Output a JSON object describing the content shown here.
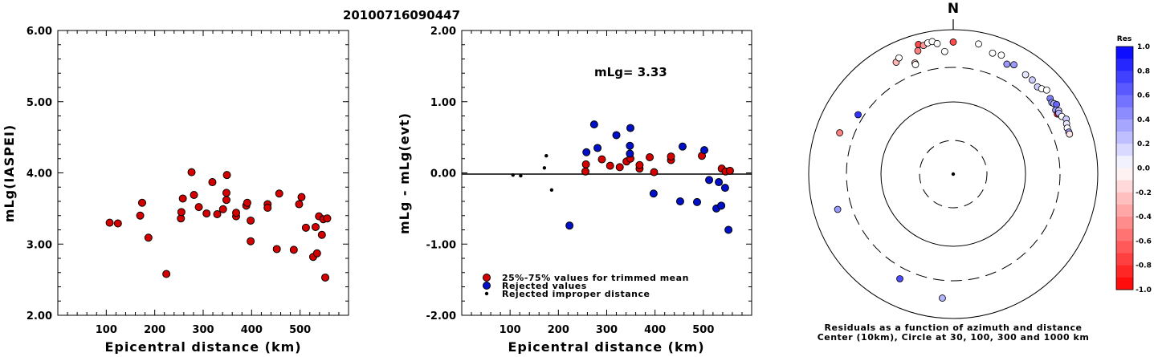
{
  "title": "20100716090447",
  "colors": {
    "red": "#d40000",
    "blue": "#0010c8",
    "black": "#000000"
  },
  "chart_data": [
    {
      "type": "scatter",
      "xlabel": "Epicentral distance (km)",
      "ylabel": "mLg(IASPEI)",
      "xlim": [
        0,
        600
      ],
      "ylim": [
        2.0,
        6.0
      ],
      "xticks": [
        "100",
        "200",
        "300",
        "400",
        "500"
      ],
      "yticks": [
        "2.00",
        "3.00",
        "4.00",
        "5.00",
        "6.00"
      ],
      "series": [
        {
          "color": "red",
          "points": [
            [
              107,
              3.3
            ],
            [
              124,
              3.29
            ],
            [
              170,
              3.4
            ],
            [
              174,
              3.58
            ],
            [
              187,
              3.09
            ],
            [
              224,
              2.58
            ],
            [
              254,
              3.36
            ],
            [
              255,
              3.45
            ],
            [
              258,
              3.64
            ],
            [
              276,
              4.01
            ],
            [
              281,
              3.69
            ],
            [
              291,
              3.52
            ],
            [
              307,
              3.43
            ],
            [
              319,
              3.87
            ],
            [
              329,
              3.42
            ],
            [
              341,
              3.49
            ],
            [
              349,
              3.97
            ],
            [
              348,
              3.62
            ],
            [
              348,
              3.72
            ],
            [
              368,
              3.39
            ],
            [
              368,
              3.44
            ],
            [
              389,
              3.54
            ],
            [
              391,
              3.58
            ],
            [
              398,
              3.04
            ],
            [
              398,
              3.33
            ],
            [
              433,
              3.56
            ],
            [
              433,
              3.51
            ],
            [
              452,
              2.93
            ],
            [
              457,
              3.71
            ],
            [
              487,
              2.92
            ],
            [
              498,
              3.56
            ],
            [
              503,
              3.66
            ],
            [
              512,
              3.23
            ],
            [
              527,
              2.82
            ],
            [
              532,
              3.24
            ],
            [
              535,
              2.87
            ],
            [
              539,
              3.39
            ],
            [
              545,
              3.13
            ],
            [
              548,
              3.35
            ],
            [
              552,
              2.53
            ],
            [
              556,
              3.36
            ]
          ]
        }
      ]
    },
    {
      "type": "scatter",
      "xlabel": "Epicentral distance (km)",
      "ylabel": "mLg - mLg(evt)",
      "xlim": [
        0,
        600
      ],
      "ylim": [
        -2.0,
        2.0
      ],
      "xticks": [
        "100",
        "200",
        "300",
        "400",
        "500"
      ],
      "yticks": [
        "-2.00",
        "-1.00",
        "0.00",
        "1.00",
        "2.00"
      ],
      "annotation": "mLg= 3.33",
      "legend": {
        "position": "bottom-left",
        "entries": [
          {
            "label": "25%-75% values for trimmed mean",
            "color": "red"
          },
          {
            "label": "Rejected values",
            "color": "blue"
          },
          {
            "label": "Rejected improper distance",
            "color": "black"
          }
        ]
      },
      "series": [
        {
          "color": "black",
          "size": "small",
          "points": [
            [
              106,
              -0.03
            ],
            [
              122,
              -0.04
            ],
            [
              171,
              0.07
            ],
            [
              175,
              0.24
            ],
            [
              186,
              -0.24
            ]
          ]
        },
        {
          "color": "red",
          "points": [
            [
              256,
              0.02
            ],
            [
              257,
              0.12
            ],
            [
              290,
              0.19
            ],
            [
              307,
              0.1
            ],
            [
              327,
              0.08
            ],
            [
              341,
              0.16
            ],
            [
              349,
              0.2
            ],
            [
              368,
              0.06
            ],
            [
              368,
              0.11
            ],
            [
              389,
              0.22
            ],
            [
              398,
              0.01
            ],
            [
              433,
              0.18
            ],
            [
              433,
              0.23
            ],
            [
              497,
              0.24
            ],
            [
              538,
              0.06
            ],
            [
              546,
              0.02
            ],
            [
              555,
              0.03
            ]
          ]
        },
        {
          "color": "blue",
          "points": [
            [
              223,
              -0.74
            ],
            [
              258,
              0.29
            ],
            [
              274,
              0.68
            ],
            [
              281,
              0.35
            ],
            [
              320,
              0.53
            ],
            [
              348,
              0.27
            ],
            [
              348,
              0.38
            ],
            [
              349,
              0.63
            ],
            [
              397,
              -0.29
            ],
            [
              452,
              -0.4
            ],
            [
              457,
              0.37
            ],
            [
              487,
              -0.41
            ],
            [
              502,
              0.32
            ],
            [
              512,
              -0.1
            ],
            [
              527,
              -0.5
            ],
            [
              532,
              -0.13
            ],
            [
              537,
              -0.46
            ],
            [
              545,
              -0.21
            ],
            [
              552,
              -0.8
            ]
          ]
        }
      ]
    },
    {
      "type": "polar",
      "north_label": "N",
      "caption": [
        "Residuals as a function of azimuth and distance",
        "Center (10km), Circle at 30, 100, 300 and 1000 km"
      ],
      "rings_km": [
        30,
        100,
        300,
        1000
      ],
      "colorbar": {
        "title": "Res",
        "min": -1.0,
        "max": 1.0,
        "labels": [
          "1.0",
          "0.8",
          "0.6",
          "0.4",
          "0.2",
          "0.0",
          "-0.2",
          "-0.4",
          "-0.6",
          "-0.8",
          "-1.0"
        ]
      },
      "points": [
        {
          "az": 356,
          "dist": 600,
          "res": 0.0
        },
        {
          "az": 185,
          "dist": 630,
          "res": 0.3
        },
        {
          "az": 207,
          "dist": 500,
          "res": 0.7
        },
        {
          "az": 253,
          "dist": 560,
          "res": 0.4
        },
        {
          "az": 290,
          "dist": 560,
          "res": -0.5
        },
        {
          "az": 302,
          "dist": 400,
          "res": 0.8
        },
        {
          "az": 333,
          "dist": 650,
          "res": -0.3
        },
        {
          "az": 335,
          "dist": 700,
          "res": 0.0
        },
        {
          "az": 341,
          "dist": 500,
          "res": -0.2
        },
        {
          "az": 341,
          "dist": 470,
          "res": 0.0
        },
        {
          "az": 344,
          "dist": 700,
          "res": -0.5
        },
        {
          "az": 345,
          "dist": 810,
          "res": -0.7
        },
        {
          "az": 347,
          "dist": 770,
          "res": -0.4
        },
        {
          "az": 349,
          "dist": 800,
          "res": 0.0
        },
        {
          "az": 351,
          "dist": 810,
          "res": 0.0
        },
        {
          "az": 353,
          "dist": 760,
          "res": 0.0
        },
        {
          "az": 0,
          "dist": 770,
          "res": -0.7
        },
        {
          "az": 11,
          "dist": 780,
          "res": 0.0
        },
        {
          "az": 18,
          "dist": 680,
          "res": 0.0
        },
        {
          "az": 22,
          "dist": 700,
          "res": 0.0
        },
        {
          "az": 26,
          "dist": 590,
          "res": 0.4
        },
        {
          "az": 29,
          "dist": 640,
          "res": 0.4
        },
        {
          "az": 36,
          "dist": 600,
          "res": 0.1
        },
        {
          "az": 40,
          "dist": 600,
          "res": 0.2
        },
        {
          "az": 44,
          "dist": 570,
          "res": 0.2
        },
        {
          "az": 46,
          "dist": 600,
          "res": 0.0
        },
        {
          "az": 48,
          "dist": 650,
          "res": 0.0
        },
        {
          "az": 52,
          "dist": 600,
          "res": 0.5
        },
        {
          "az": 54,
          "dist": 580,
          "res": 0.4
        },
        {
          "az": 55,
          "dist": 600,
          "res": 0.3
        },
        {
          "az": 56,
          "dist": 630,
          "res": 0.6
        },
        {
          "az": 58,
          "dist": 560,
          "res": 0.4
        },
        {
          "az": 59,
          "dist": 600,
          "res": 0.2
        },
        {
          "az": 60,
          "dist": 550,
          "res": -0.9
        },
        {
          "az": 60,
          "dist": 580,
          "res": 0.3
        },
        {
          "az": 62,
          "dist": 600,
          "res": 0.0
        },
        {
          "az": 64,
          "dist": 650,
          "res": 0.2
        },
        {
          "az": 66,
          "dist": 620,
          "res": 0.1
        },
        {
          "az": 68,
          "dist": 600,
          "res": 0.0
        },
        {
          "az": 70,
          "dist": 600,
          "res": 0.4
        },
        {
          "az": 71,
          "dist": 600,
          "res": -0.1
        }
      ]
    }
  ]
}
